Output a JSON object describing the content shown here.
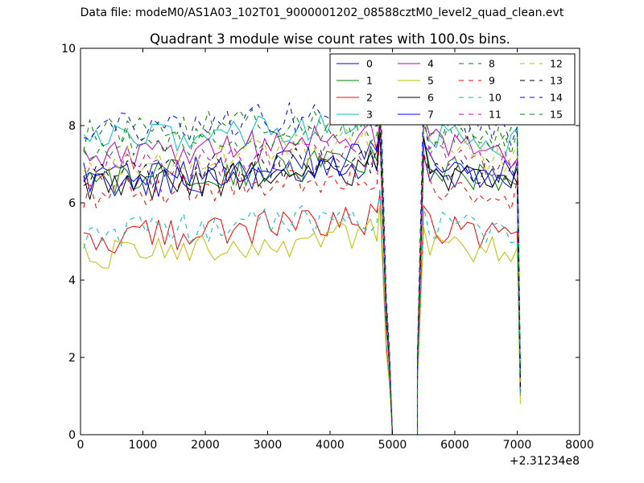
{
  "suptitle": "Data file: modeM0/AS1A03_102T01_9000001202_08588cztM0_level2_quad_clean.evt",
  "chart_data": {
    "type": "line",
    "title": "Quadrant 3 module wise count rates with 100.0s bins.",
    "xlabel": "",
    "ylabel": "",
    "x_offset_label": "+2.31234e8",
    "xlim": [
      0,
      8000
    ],
    "ylim": [
      0,
      10
    ],
    "xticks": [
      0,
      1000,
      2000,
      3000,
      4000,
      5000,
      6000,
      7000,
      8000
    ],
    "yticks": [
      0,
      2,
      4,
      6,
      8,
      10
    ],
    "grid": false,
    "legend_position": "top-right",
    "legend_columns": 4,
    "gap": {
      "x": [
        5000,
        5100,
        5200,
        5300,
        5400
      ],
      "value": 0
    },
    "x_first_segment": [
      50,
      150,
      250,
      350,
      450,
      550,
      650,
      750,
      850,
      950,
      1050,
      1150,
      1250,
      1350,
      1450,
      1550,
      1650,
      1750,
      1850,
      1950,
      2050,
      2150,
      2250,
      2350,
      2450,
      2550,
      2650,
      2750,
      2850,
      2950,
      3050,
      3150,
      3250,
      3350,
      3450,
      3550,
      3650,
      3750,
      3850,
      3950,
      4050,
      4150,
      4250,
      4350,
      4450,
      4550,
      4650,
      4750,
      4800,
      4900,
      4950
    ],
    "x_second_segment": [
      5400,
      5500,
      5600,
      5700,
      5800,
      5900,
      6000,
      6100,
      6200,
      6300,
      6400,
      6500,
      6600,
      6700,
      6800,
      6900,
      7000,
      7050
    ],
    "series": [
      {
        "name": "0",
        "color": "#0000ff",
        "dash": "solid",
        "level1": 6.6,
        "level2": 6.9,
        "end": 1.2
      },
      {
        "name": "1",
        "color": "#008000",
        "dash": "solid",
        "level1": 6.7,
        "level2": 6.9,
        "end": 1.4
      },
      {
        "name": "2",
        "color": "#ff0000",
        "dash": "solid",
        "level1": 5.2,
        "level2": 5.4,
        "end": 1.0
      },
      {
        "name": "3",
        "color": "#00bfbf",
        "dash": "solid",
        "level1": 7.7,
        "level2": 7.8,
        "end": 1.5
      },
      {
        "name": "4",
        "color": "#bf00bf",
        "dash": "solid",
        "level1": 7.3,
        "level2": 7.6,
        "end": 1.3
      },
      {
        "name": "5",
        "color": "#bfbf00",
        "dash": "solid",
        "level1": 4.8,
        "level2": 5.0,
        "end": 0.8
      },
      {
        "name": "6",
        "color": "#000000",
        "dash": "solid",
        "level1": 6.5,
        "level2": 6.8,
        "end": 1.1
      },
      {
        "name": "7",
        "color": "#0000ff",
        "dash": "solid",
        "level1": 6.8,
        "level2": 7.0,
        "end": 1.2
      },
      {
        "name": "8",
        "color": "#008000",
        "dash": "dashed",
        "level1": 7.9,
        "level2": 8.0,
        "end": 1.6
      },
      {
        "name": "9",
        "color": "#ff0000",
        "dash": "dashed",
        "level1": 6.4,
        "level2": 6.5,
        "end": 1.1
      },
      {
        "name": "10",
        "color": "#00bfbf",
        "dash": "dashed",
        "level1": 5.3,
        "level2": 5.5,
        "end": 1.0
      },
      {
        "name": "11",
        "color": "#bf00bf",
        "dash": "dashed",
        "level1": 7.0,
        "level2": 7.3,
        "end": 1.3
      },
      {
        "name": "12",
        "color": "#bfbf00",
        "dash": "dashed",
        "level1": 7.2,
        "level2": 7.4,
        "end": 1.2
      },
      {
        "name": "13",
        "color": "#000000",
        "dash": "dashed",
        "level1": 6.8,
        "level2": 7.0,
        "end": 1.2
      },
      {
        "name": "14",
        "color": "#0000ff",
        "dash": "dashed",
        "level1": 8.0,
        "level2": 8.2,
        "end": 1.7
      },
      {
        "name": "15",
        "color": "#008000",
        "dash": "dashed",
        "level1": 7.6,
        "level2": 7.8,
        "end": 1.5
      }
    ]
  }
}
